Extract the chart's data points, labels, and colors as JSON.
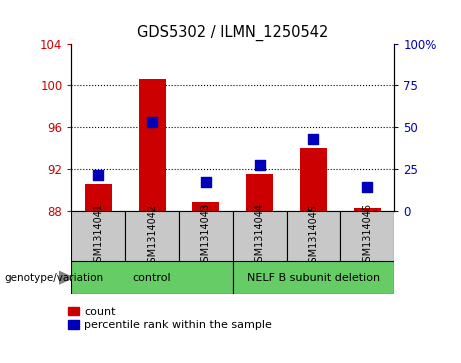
{
  "title": "GDS5302 / ILMN_1250542",
  "samples": [
    "GSM1314041",
    "GSM1314042",
    "GSM1314043",
    "GSM1314044",
    "GSM1314045",
    "GSM1314046"
  ],
  "counts": [
    90.5,
    100.6,
    88.8,
    91.5,
    94.0,
    88.2
  ],
  "percentiles": [
    21,
    53,
    17,
    27,
    43,
    14
  ],
  "ylim_left": [
    88,
    104
  ],
  "ylim_right": [
    0,
    100
  ],
  "yticks_left": [
    88,
    92,
    96,
    100,
    104
  ],
  "yticks_right": [
    0,
    25,
    50,
    75,
    100
  ],
  "ytick_labels_right": [
    "0",
    "25",
    "50",
    "75",
    "100%"
  ],
  "bar_color": "#CC0000",
  "dot_color": "#0000BB",
  "bar_width": 0.5,
  "dot_size": 45,
  "bg_color": "#FFFFFF",
  "bar_base": 88,
  "left_label_color": "#CC0000",
  "right_label_color": "#0000BB",
  "legend_count_label": "count",
  "legend_pct_label": "percentile rank within the sample",
  "genotype_label": "genotype/variation",
  "control_label": "control",
  "deletion_label": "NELF B subunit deletion",
  "sample_box_color": "#C8C8C8",
  "group_box_color": "#66CC66",
  "control_count": 3,
  "deletion_count": 3
}
